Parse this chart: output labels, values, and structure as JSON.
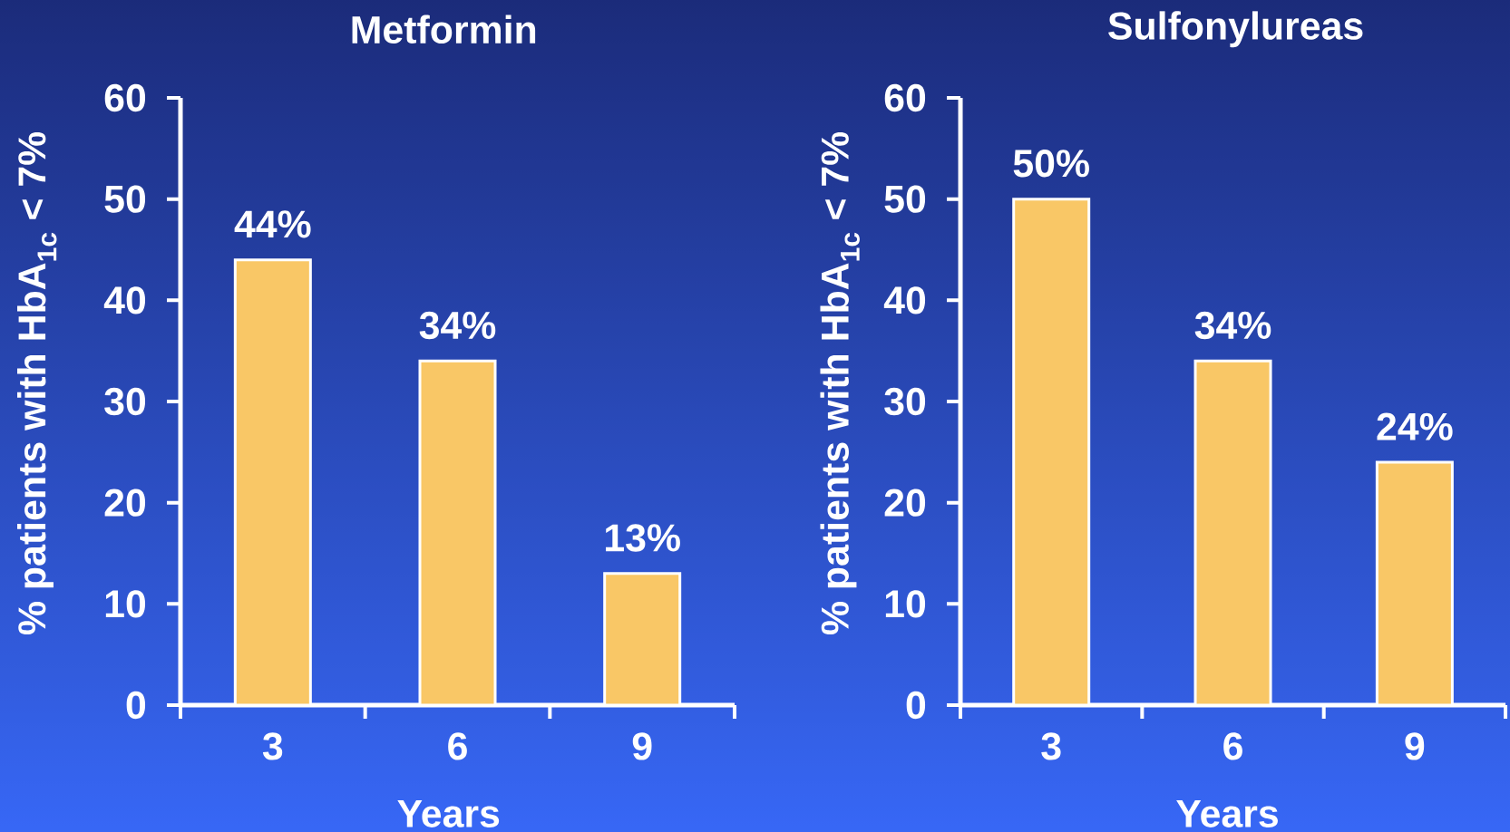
{
  "chart_data": [
    {
      "type": "bar",
      "title": "Metformin",
      "xlabel": "Years",
      "ylabel": "% patients with HbA$_{1c}$ < 7%",
      "categories": [
        "3",
        "6",
        "9"
      ],
      "values": [
        44,
        34,
        13
      ],
      "value_labels": [
        "44%",
        "34%",
        "13%"
      ],
      "color": "#f9c766",
      "ylim": [
        0,
        60
      ],
      "yticks": [
        0,
        10,
        20,
        30,
        40,
        50,
        60
      ]
    },
    {
      "type": "bar",
      "title": "Sulfonylureas",
      "xlabel": "Years",
      "ylabel": "% patients with HbA$_{1c}$ < 7%",
      "categories": [
        "3",
        "6",
        "9"
      ],
      "values": [
        50,
        34,
        24
      ],
      "value_labels": [
        "50%",
        "34%",
        "24%"
      ],
      "color": "#f9c766",
      "ylim": [
        0,
        60
      ],
      "yticks": [
        0,
        10,
        20,
        30,
        40,
        50,
        60
      ]
    }
  ]
}
